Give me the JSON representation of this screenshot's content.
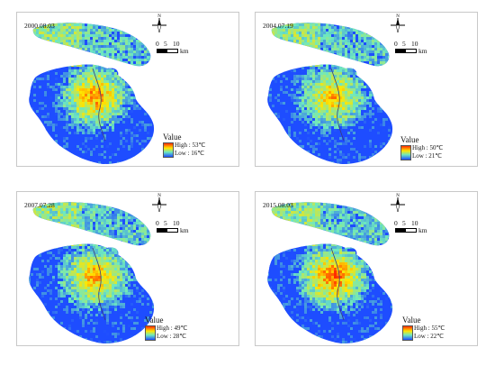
{
  "scale": {
    "ticks": [
      "0",
      "5",
      "10"
    ],
    "unit": "km"
  },
  "north_symbol": "N",
  "legend_title": "Value",
  "panels": [
    {
      "date": "2000.08.03",
      "high": "High : 53℃",
      "low": "Low : 16℃"
    },
    {
      "date": "2004.07.19",
      "high": "High : 50℃",
      "low": "Low : 21℃"
    },
    {
      "date": "2007.07.28",
      "high": "High : 49℃",
      "low": "Low : 28℃"
    },
    {
      "date": "2015.08.03",
      "high": "High : 55℃",
      "low": "Low : 22℃"
    }
  ],
  "colors": {
    "low": "#1e4dff",
    "mid": "#6de8c0",
    "warm": "#ffe600",
    "high": "#ff2a00"
  }
}
